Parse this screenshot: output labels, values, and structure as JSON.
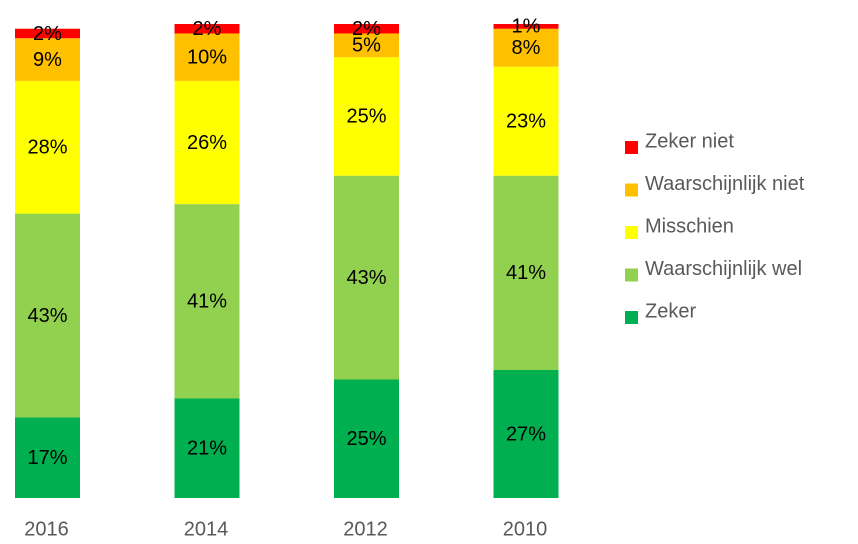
{
  "chart_data": {
    "type": "stacked_bar",
    "categories": [
      "2016",
      "2014",
      "2012",
      "2010"
    ],
    "series": [
      {
        "name": "Zeker",
        "color": "#00b050",
        "values": [
          17,
          21,
          25,
          27
        ],
        "value_labels": [
          "17%",
          "21%",
          "25%",
          "27%"
        ]
      },
      {
        "name": "Waarschijnlijk wel",
        "color": "#92d050",
        "values": [
          43,
          41,
          43,
          41
        ],
        "value_labels": [
          "43%",
          "41%",
          "43%",
          "41%"
        ]
      },
      {
        "name": "Misschien",
        "color": "#ffff00",
        "values": [
          28,
          26,
          25,
          23
        ],
        "value_labels": [
          "28%",
          "26%",
          "25%",
          "23%"
        ]
      },
      {
        "name": "Waarschijnlijk niet",
        "color": "#ffc000",
        "values": [
          9,
          10,
          5,
          8
        ],
        "value_labels": [
          "9%",
          "10%",
          "5%",
          "8%"
        ]
      },
      {
        "name": "Zeker niet",
        "color": "#ff0000",
        "values": [
          2,
          2,
          2,
          1
        ],
        "value_labels": [
          "2%",
          "2%",
          "2%",
          "1%"
        ]
      }
    ],
    "legend": "right"
  }
}
